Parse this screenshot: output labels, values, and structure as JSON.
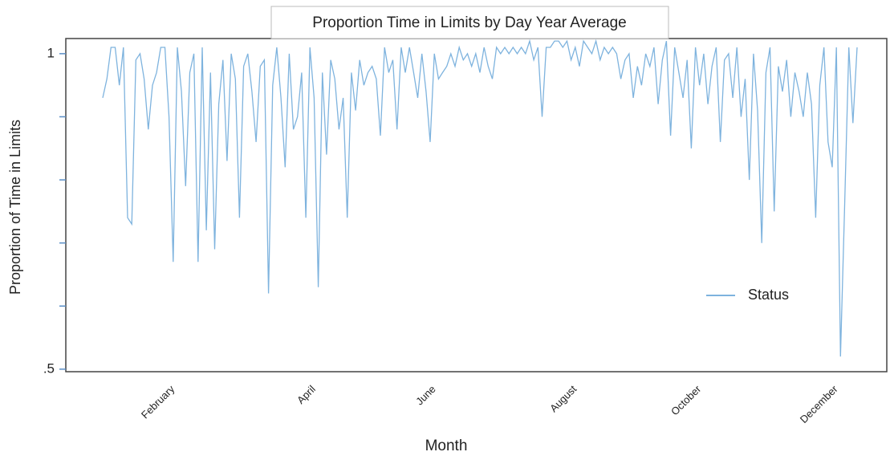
{
  "chart_data": {
    "type": "line",
    "title": "Proportion Time in Limits by Day Year Average",
    "x_label": "Month",
    "y_label": "Proportion of Time in Limits",
    "categories": [
      null,
      null,
      null,
      null,
      null,
      null,
      null,
      null,
      null,
      null,
      null,
      null,
      null,
      null,
      null,
      null,
      null,
      "February",
      null,
      null,
      null,
      null,
      null,
      null,
      null,
      null,
      null,
      null,
      null,
      null,
      null,
      null,
      null,
      null,
      null,
      null,
      null,
      null,
      null,
      null,
      null,
      null,
      null,
      null,
      null,
      null,
      null,
      null,
      null,
      null,
      null,
      "April",
      null,
      null,
      null,
      null,
      null,
      null,
      null,
      null,
      null,
      null,
      null,
      null,
      null,
      null,
      null,
      null,
      null,
      null,
      null,
      null,
      null,
      null,
      null,
      null,
      null,
      null,
      null,
      null,
      "June",
      null,
      null,
      null,
      null,
      null,
      null,
      null,
      null,
      null,
      null,
      null,
      null,
      null,
      null,
      null,
      null,
      null,
      null,
      null,
      null,
      null,
      null,
      null,
      null,
      null,
      null,
      null,
      null,
      null,
      null,
      null,
      null,
      null,
      "August",
      null,
      null,
      null,
      null,
      null,
      null,
      null,
      null,
      null,
      null,
      null,
      null,
      null,
      null,
      null,
      null,
      null,
      null,
      null,
      null,
      null,
      null,
      null,
      null,
      null,
      null,
      null,
      null,
      null,
      "October",
      null,
      null,
      null,
      null,
      null,
      null,
      null,
      null,
      null,
      null,
      null,
      null,
      null,
      null,
      null,
      null,
      null,
      null,
      null,
      null,
      null,
      null,
      null,
      null,
      null,
      null,
      null,
      null,
      null,
      null,
      null,
      null,
      "December",
      null,
      null,
      null,
      null,
      null
    ],
    "series": [
      {
        "name": "Status",
        "color": "#7eb3de",
        "values": [
          0.93,
          0.96,
          1.01,
          1.01,
          0.95,
          1.01,
          0.74,
          0.73,
          0.99,
          1.0,
          0.96,
          0.88,
          0.95,
          0.97,
          1.01,
          1.01,
          0.9,
          0.67,
          1.01,
          0.94,
          0.79,
          0.97,
          1.0,
          0.67,
          1.01,
          0.72,
          0.97,
          0.69,
          0.92,
          0.99,
          0.83,
          1.0,
          0.96,
          0.74,
          0.98,
          1.0,
          0.94,
          0.86,
          0.98,
          0.99,
          0.62,
          0.95,
          1.01,
          0.93,
          0.82,
          1.0,
          0.88,
          0.9,
          0.97,
          0.74,
          1.01,
          0.93,
          0.63,
          0.97,
          0.84,
          0.99,
          0.96,
          0.88,
          0.93,
          0.74,
          0.97,
          0.91,
          0.99,
          0.95,
          0.97,
          0.98,
          0.96,
          0.87,
          1.01,
          0.97,
          0.99,
          0.88,
          1.01,
          0.97,
          1.01,
          0.97,
          0.93,
          1.0,
          0.94,
          0.86,
          1.0,
          0.96,
          0.97,
          0.98,
          1.0,
          0.98,
          1.01,
          0.99,
          1.0,
          0.98,
          1.0,
          0.97,
          1.01,
          0.98,
          0.96,
          1.01,
          1.0,
          1.01,
          1.0,
          1.01,
          1.0,
          1.01,
          1.0,
          1.02,
          0.99,
          1.01,
          0.9,
          1.01,
          1.01,
          1.02,
          1.02,
          1.01,
          1.02,
          0.99,
          1.01,
          0.98,
          1.02,
          1.01,
          1.0,
          1.02,
          0.99,
          1.01,
          1.0,
          1.01,
          1.0,
          0.96,
          0.99,
          1.0,
          0.93,
          0.98,
          0.95,
          1.0,
          0.98,
          1.01,
          0.92,
          0.99,
          1.02,
          0.87,
          1.01,
          0.97,
          0.93,
          0.99,
          0.85,
          1.01,
          0.95,
          1.0,
          0.92,
          0.98,
          1.01,
          0.86,
          0.99,
          1.0,
          0.93,
          1.01,
          0.9,
          0.96,
          0.8,
          1.0,
          0.91,
          0.7,
          0.97,
          1.01,
          0.75,
          0.98,
          0.94,
          0.99,
          0.9,
          0.97,
          0.94,
          0.9,
          0.97,
          0.92,
          0.74,
          0.95,
          1.01,
          0.86,
          0.82,
          1.01,
          0.52,
          0.76,
          1.01,
          0.89,
          1.01
        ]
      }
    ],
    "ylim": [
      0.496,
      1.024
    ],
    "yticks": [
      {
        "value": 0.5,
        "label": ".5"
      },
      1
    ],
    "yminorticks": [
      0.6,
      0.7,
      0.8,
      0.9
    ],
    "legend_position": "center right"
  }
}
